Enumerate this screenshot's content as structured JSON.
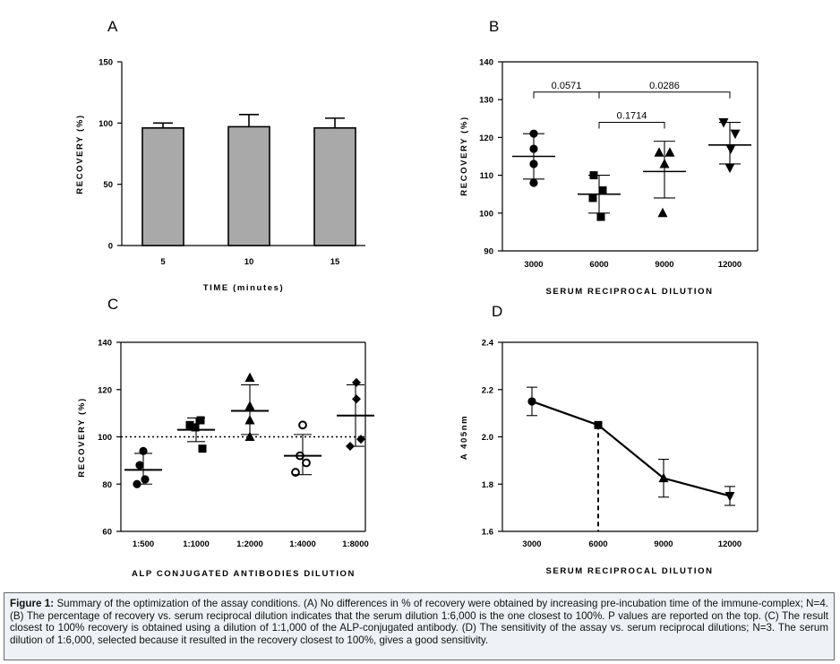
{
  "caption": {
    "label": "Figure 1:",
    "text": " Summary of the optimization of the assay conditions.  (A) No differences in % of recovery were obtained by increasing pre-incubation time of the immune-complex; N=4. (B) The percentage of recovery vs. serum reciprocal dilution indicates that the serum dilution 1:6,000 is the one closest to 100%. P values are reported on the top. (C) The result closest to 100% recovery is obtained using a dilution of 1:1,000 of the ALP-conjugated antibody.  (D) The sensitivity of the assay vs. serum reciprocal dilutions; N=3. The serum dilution of 1:6,000, selected because it resulted in the recovery closest to 100%, gives a good sensitivity."
  },
  "chart_data": [
    {
      "panel": "A",
      "type": "bar",
      "xlabel": "TIME (minutes)",
      "ylabel": "RECOVERY (%)",
      "ylim": [
        0,
        150
      ],
      "yticks": [
        0,
        50,
        100,
        150
      ],
      "categories": [
        "5",
        "10",
        "15"
      ],
      "values": [
        96,
        97,
        96
      ],
      "error_upper": [
        100,
        107,
        104
      ],
      "bar_color": "#a9a9a9"
    },
    {
      "panel": "B",
      "type": "scatter",
      "xlabel": "SERUM RECIPROCAL DILUTION",
      "ylabel": "RECOVERY (%)",
      "ylim": [
        90,
        140
      ],
      "yticks": [
        90,
        100,
        110,
        120,
        130,
        140
      ],
      "categories": [
        "3000",
        "6000",
        "9000",
        "12000"
      ],
      "series": [
        {
          "name": "3000",
          "marker": "circle",
          "points": [
            121,
            117,
            113,
            108
          ],
          "mean": 115,
          "error": [
            109,
            121
          ]
        },
        {
          "name": "6000",
          "marker": "square",
          "points": [
            110,
            106,
            104,
            99
          ],
          "mean": 105,
          "error": [
            100,
            110
          ]
        },
        {
          "name": "9000",
          "marker": "triangle-up",
          "points": [
            116,
            116,
            113,
            100
          ],
          "mean": 111,
          "error": [
            104,
            119
          ]
        },
        {
          "name": "12000",
          "marker": "triangle-down",
          "points": [
            124,
            121,
            117,
            112
          ],
          "mean": 118,
          "error": [
            113,
            124
          ]
        }
      ],
      "comparisons": [
        {
          "from": "3000",
          "to": "6000",
          "level": 132,
          "label": "0.0571"
        },
        {
          "from": "6000",
          "to": "12000",
          "level": 132,
          "label": "0.0286"
        },
        {
          "from": "6000",
          "to": "9000",
          "level": 124,
          "label": "0.1714"
        }
      ]
    },
    {
      "panel": "C",
      "type": "scatter",
      "xlabel": "ALP CONJUGATED ANTIBODIES DILUTION",
      "ylabel": "RECOVERY (%)",
      "ylim": [
        60,
        140
      ],
      "yticks": [
        60,
        80,
        100,
        120,
        140
      ],
      "reference_line": 100,
      "categories": [
        "1:500",
        "1:1000",
        "1:2000",
        "1:4000",
        "1:8000"
      ],
      "series": [
        {
          "name": "1:500",
          "marker": "circle",
          "points": [
            94,
            88,
            82,
            80
          ],
          "mean": 86,
          "error": [
            80,
            93
          ]
        },
        {
          "name": "1:1000",
          "marker": "square",
          "points": [
            107,
            105,
            104,
            95
          ],
          "mean": 103,
          "error": [
            98,
            108
          ]
        },
        {
          "name": "1:2000",
          "marker": "triangle-up",
          "points": [
            125,
            113,
            107,
            100
          ],
          "mean": 111,
          "error": [
            101,
            122
          ]
        },
        {
          "name": "1:4000",
          "marker": "circle-open",
          "points": [
            105,
            92,
            89,
            85
          ],
          "mean": 92,
          "error": [
            84,
            101
          ]
        },
        {
          "name": "1:8000",
          "marker": "diamond",
          "points": [
            123,
            116,
            99,
            96
          ],
          "mean": 109,
          "error": [
            96,
            122
          ]
        }
      ]
    },
    {
      "panel": "D",
      "type": "line",
      "xlabel": "SERUM RECIPROCAL DILUTION",
      "ylabel": "A 405nm",
      "ylim": [
        1.6,
        2.4
      ],
      "yticks": [
        "1.6",
        "1.8",
        "2.0",
        "2.2",
        "2.4"
      ],
      "categories": [
        "3000",
        "6000",
        "9000",
        "12000"
      ],
      "values": [
        2.15,
        2.05,
        1.825,
        1.75
      ],
      "error": [
        0.06,
        0.005,
        0.08,
        0.04
      ],
      "markers": [
        "circle",
        "square",
        "triangle-up",
        "triangle-down"
      ],
      "highlight_category": "6000"
    }
  ]
}
